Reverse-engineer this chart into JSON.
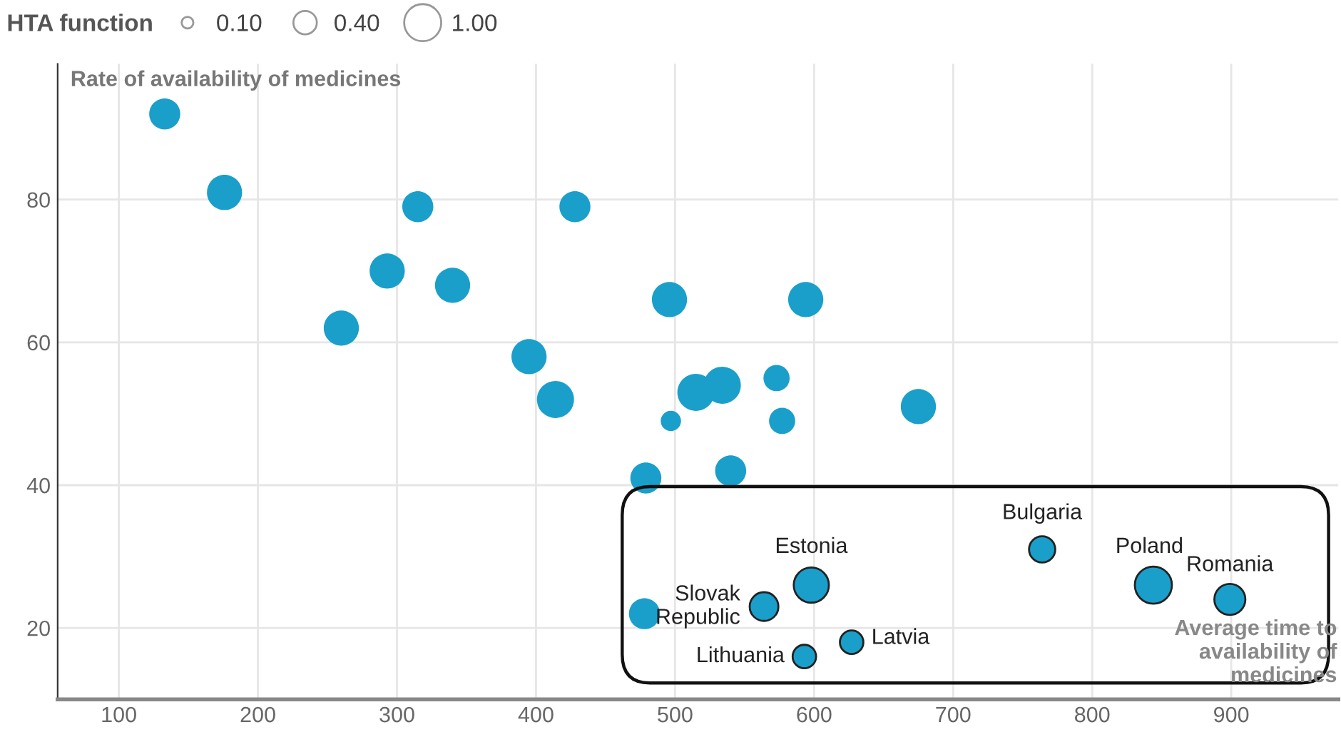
{
  "chart_data": {
    "type": "bubble",
    "xlabel": "Average time to availability of medicines",
    "ylabel": "Rate of availability of medicines",
    "legend_title": "HTA function",
    "grid": true,
    "xlim": [
      56,
      977
    ],
    "xticks": [
      100,
      200,
      300,
      400,
      500,
      600,
      700,
      800,
      900
    ],
    "ylim": [
      10,
      99
    ],
    "yticks": [
      20,
      40,
      60,
      80
    ],
    "size_legend": [
      {
        "value": 0.1,
        "label": "0.10"
      },
      {
        "value": 0.4,
        "label": "0.40"
      },
      {
        "value": 1.0,
        "label": "1.00"
      }
    ],
    "series": [
      {
        "color": "#1a9fcb",
        "x": [
          133,
          176,
          315,
          428,
          293,
          340,
          260,
          395,
          414,
          496,
          594,
          497,
          515,
          534,
          573,
          577,
          540,
          479,
          675,
          478
        ],
        "values": [
          92,
          81,
          79,
          79,
          70,
          68,
          62,
          58,
          52,
          66,
          66,
          49,
          53,
          54,
          55,
          49,
          42,
          41,
          51,
          22
        ],
        "sizes": [
          0.7,
          0.9,
          0.7,
          0.7,
          0.9,
          0.9,
          0.9,
          0.9,
          1.0,
          0.9,
          0.9,
          0.3,
          1.0,
          1.0,
          0.5,
          0.5,
          0.7,
          0.7,
          0.9,
          0.7
        ]
      },
      {
        "color": "#1a9fcb",
        "x": [
          564,
          598,
          764,
          844,
          899,
          593,
          627
        ],
        "values": [
          23,
          26,
          31,
          26,
          24,
          16,
          18
        ],
        "sizes": [
          0.6,
          0.9,
          0.5,
          1.0,
          0.7,
          0.4,
          0.4
        ]
      }
    ],
    "annotations": [
      {
        "text": "Slovak\nRepublic",
        "x": 564,
        "y": 23
      },
      {
        "text": "Estonia",
        "x": 598,
        "y": 26
      },
      {
        "text": "Bulgaria",
        "x": 764,
        "y": 31
      },
      {
        "text": "Poland",
        "x": 844,
        "y": 26
      },
      {
        "text": "Romania",
        "x": 899,
        "y": 24
      },
      {
        "text": "Lithuania",
        "x": 593,
        "y": 16
      },
      {
        "text": "Latvia",
        "x": 627,
        "y": 18
      }
    ]
  }
}
